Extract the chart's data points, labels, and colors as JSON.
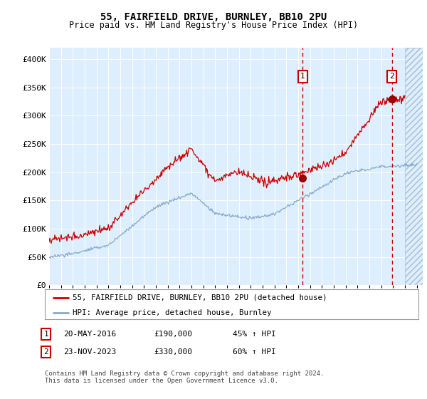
{
  "title": "55, FAIRFIELD DRIVE, BURNLEY, BB10 2PU",
  "subtitle": "Price paid vs. HM Land Registry's House Price Index (HPI)",
  "ylim": [
    0,
    420000
  ],
  "yticks": [
    0,
    50000,
    100000,
    150000,
    200000,
    250000,
    300000,
    350000,
    400000
  ],
  "ytick_labels": [
    "£0",
    "£50K",
    "£100K",
    "£150K",
    "£200K",
    "£250K",
    "£300K",
    "£350K",
    "£400K"
  ],
  "sale1_date_num": 2016.38,
  "sale1_price": 190000,
  "sale1_label": "1",
  "sale2_date_num": 2023.9,
  "sale2_price": 330000,
  "sale2_label": "2",
  "line1_color": "#cc0000",
  "line2_color": "#88aacc",
  "marker_color": "#990000",
  "vline_color": "#cc0000",
  "box_color": "#cc0000",
  "legend_line1": "55, FAIRFIELD DRIVE, BURNLEY, BB10 2PU (detached house)",
  "legend_line2": "HPI: Average price, detached house, Burnley",
  "footer": "Contains HM Land Registry data © Crown copyright and database right 2024.\nThis data is licensed under the Open Government Licence v3.0.",
  "background_color": "#ffffff",
  "plot_bg_color": "#ddeeff",
  "xmin": 1995,
  "xmax": 2026.5
}
